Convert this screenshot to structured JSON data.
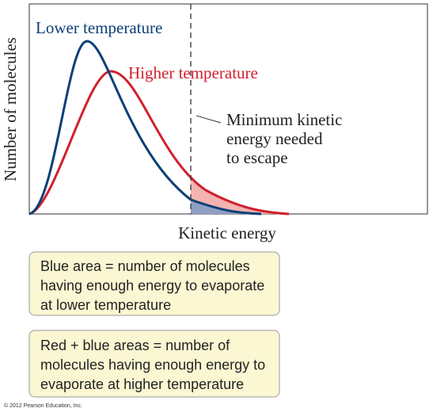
{
  "labels": {
    "y_axis": "Number of molecules",
    "x_axis": "Kinetic energy",
    "lower": "Lower temperature",
    "higher": "Higher temperature",
    "minimum": [
      "Minimum kinetic",
      "energy needed",
      "to escape"
    ]
  },
  "notes": [
    [
      "Blue area = number of molecules",
      "having enough energy to evaporate",
      "at lower temperature"
    ],
    [
      "Red + blue areas = number of",
      "molecules having enough energy to",
      "evaporate at higher temperature"
    ]
  ],
  "copyright": "© 2012 Pearson Education, Inc."
}
